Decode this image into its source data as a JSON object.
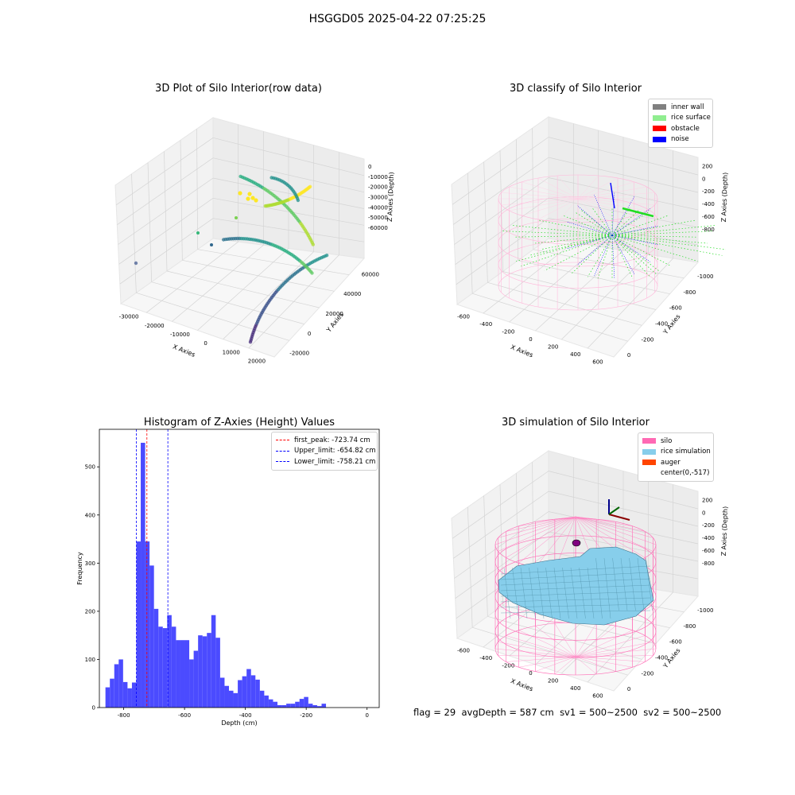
{
  "figure": {
    "suptitle": "HSGGD05 2025-04-22 07:25:25",
    "footer": {
      "flag": "flag = 29",
      "avg_depth": "avgDepth = 587 cm",
      "sv1": "sv1 = 500~2500",
      "sv2": "sv2 = 500~2500"
    }
  },
  "chart_data": [
    {
      "type": "scatter",
      "projection": "3d",
      "title": "3D Plot of Silo Interior(row data)",
      "xlabel": "X Axies",
      "ylabel": "Y Axies",
      "zlabel": "Z Axies (Depth)",
      "x_ticks": [
        -30000,
        -20000,
        -10000,
        0,
        10000,
        20000
      ],
      "y_ticks": [
        -20000,
        0,
        20000,
        40000,
        60000
      ],
      "z_ticks": [
        0,
        -10000,
        -20000,
        -30000,
        -40000,
        -50000,
        -60000
      ],
      "colormap": "viridis"
    },
    {
      "type": "scatter",
      "projection": "3d",
      "title": "3D classify of Silo Interior",
      "xlabel": "X Axies",
      "ylabel": "Y Axies",
      "zlabel": "Z Axies (Depth)",
      "x_ticks": [
        -600,
        -400,
        -200,
        0,
        200,
        400,
        600
      ],
      "y_ticks": [
        0,
        -200,
        -400,
        -600,
        -800,
        -1000
      ],
      "z_ticks": [
        200,
        0,
        -200,
        -400,
        -600,
        -800
      ],
      "legend": [
        {
          "label": "inner wall",
          "color": "#808080"
        },
        {
          "label": "rice surface",
          "color": "#90ee90"
        },
        {
          "label": "obstacle",
          "color": "#ff0000"
        },
        {
          "label": "noise",
          "color": "#0000ff"
        }
      ],
      "legend_position": "top-right"
    },
    {
      "type": "bar",
      "title": "Histogram of Z-Axies (Height) Values",
      "xlabel": "Depth (cm)",
      "ylabel": "Frequency",
      "x_ticks": [
        -800,
        -600,
        -400,
        -200,
        0
      ],
      "y_ticks": [
        0,
        100,
        200,
        300,
        400,
        500
      ],
      "xlim": [
        -880,
        40
      ],
      "ylim": [
        0,
        578
      ],
      "bar_color": "#4b4bff",
      "bins": {
        "start": -860,
        "width": 14.5,
        "counts": [
          42,
          60,
          90,
          100,
          53,
          40,
          52,
          345,
          550,
          345,
          295,
          205,
          168,
          165,
          192,
          168,
          140,
          140,
          140,
          100,
          118,
          150,
          148,
          155,
          192,
          145,
          62,
          45,
          35,
          30,
          57,
          65,
          80,
          67,
          58,
          35,
          25,
          17,
          12,
          5,
          5,
          8,
          8,
          12,
          18,
          22,
          8,
          5,
          3,
          8
        ]
      },
      "lines": [
        {
          "label": "first_peak: -723.74 cm",
          "x": -723.74,
          "color": "#ff0000"
        },
        {
          "label": "Upper_limit: -654.82 cm",
          "x": -654.82,
          "color": "#0000ff"
        },
        {
          "label": "Lower_limit: -758.21 cm",
          "x": -758.21,
          "color": "#0000ff"
        }
      ],
      "legend_position": "top-right"
    },
    {
      "type": "surface",
      "projection": "3d",
      "title": "3D simulation of Silo Interior",
      "xlabel": "X Axies",
      "ylabel": "Y Axies",
      "zlabel": "Z Axies (Depth)",
      "x_ticks": [
        -600,
        -400,
        -200,
        0,
        200,
        400,
        600
      ],
      "y_ticks": [
        0,
        -200,
        -400,
        -600,
        -800,
        -1000
      ],
      "z_ticks": [
        200,
        0,
        -200,
        -400,
        -600,
        -800
      ],
      "legend": [
        {
          "label": "silo",
          "color": "#ff69b4"
        },
        {
          "label": "rice simulation",
          "color": "#87ceeb"
        },
        {
          "label": "auger",
          "color": "#ff4500"
        },
        {
          "label": "center(0,-517)",
          "color": ""
        }
      ],
      "legend_position": "top-right"
    }
  ]
}
